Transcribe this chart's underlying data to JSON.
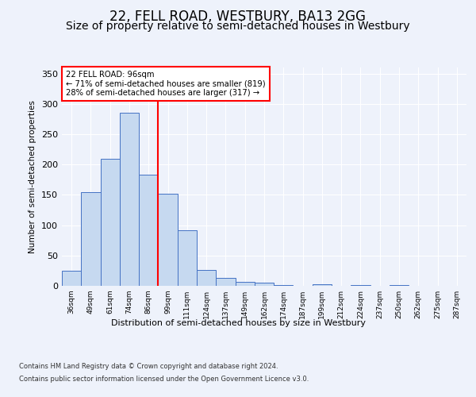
{
  "title": "22, FELL ROAD, WESTBURY, BA13 2GG",
  "subtitle": "Size of property relative to semi-detached houses in Westbury",
  "xlabel": "Distribution of semi-detached houses by size in Westbury",
  "ylabel": "Number of semi-detached properties",
  "categories": [
    "36sqm",
    "49sqm",
    "61sqm",
    "74sqm",
    "86sqm",
    "99sqm",
    "111sqm",
    "124sqm",
    "137sqm",
    "149sqm",
    "162sqm",
    "174sqm",
    "187sqm",
    "199sqm",
    "212sqm",
    "224sqm",
    "237sqm",
    "250sqm",
    "262sqm",
    "275sqm",
    "287sqm"
  ],
  "values": [
    25,
    155,
    210,
    285,
    183,
    152,
    91,
    26,
    13,
    6,
    5,
    1,
    0,
    3,
    0,
    1,
    0,
    1,
    0,
    0,
    0
  ],
  "bar_color": "#c6d9f0",
  "bar_edge_color": "#4472c4",
  "red_line_index": 5,
  "annotation_text": "22 FELL ROAD: 96sqm\n← 71% of semi-detached houses are smaller (819)\n28% of semi-detached houses are larger (317) →",
  "ylim": [
    0,
    360
  ],
  "yticks": [
    0,
    50,
    100,
    150,
    200,
    250,
    300,
    350
  ],
  "footer_line1": "Contains HM Land Registry data © Crown copyright and database right 2024.",
  "footer_line2": "Contains public sector information licensed under the Open Government Licence v3.0.",
  "background_color": "#eef2fb",
  "plot_bg_color": "#eef2fb",
  "title_fontsize": 12,
  "subtitle_fontsize": 10,
  "annotation_box_color": "white",
  "annotation_box_edge": "red"
}
